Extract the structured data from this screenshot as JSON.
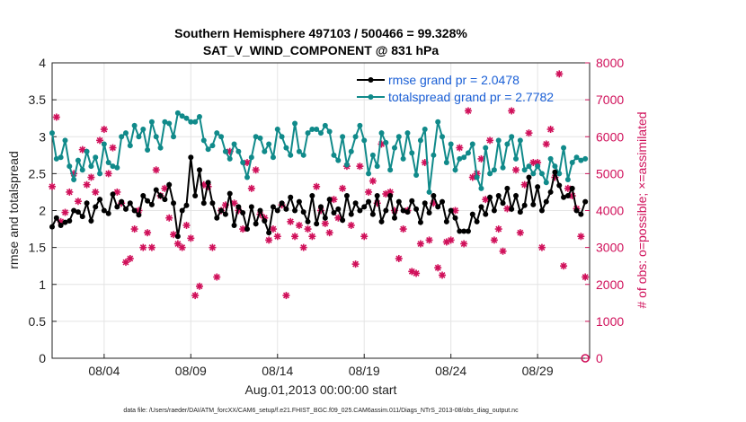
{
  "chart_data": {
    "type": "line",
    "title": "Southern Hemisphere 497103 / 500466 = 99.328%",
    "subtitle": "SAT_V_WIND_COMPONENT @ 831 hPa",
    "xlabel": "Aug.01,2013 00:00:00 start",
    "ylabel_left": "rmse and totalspread",
    "ylabel_right": "# of obs: o=possible; ×=assimilated",
    "xlim": [
      1.0,
      32.0
    ],
    "ylim_left": [
      0,
      4
    ],
    "ylim_right": [
      0,
      8000
    ],
    "x_ticks": [
      {
        "value": 4,
        "label": "08/04"
      },
      {
        "value": 9,
        "label": "08/09"
      },
      {
        "value": 14,
        "label": "08/14"
      },
      {
        "value": 19,
        "label": "08/19"
      },
      {
        "value": 24,
        "label": "08/24"
      },
      {
        "value": 29,
        "label": "08/29"
      }
    ],
    "y_ticks_left": [
      "0",
      "0.5",
      "1",
      "1.5",
      "2",
      "2.5",
      "3",
      "3.5",
      "4"
    ],
    "y_ticks_right": [
      "0",
      "1000",
      "2000",
      "3000",
      "4000",
      "5000",
      "6000",
      "7000",
      "8000"
    ],
    "grid": true,
    "legend_position": "top-right",
    "colors": {
      "rmse": "#000000",
      "spread": "#108a8a",
      "obs": "#d0105a",
      "legend_text": "#1a5fd6"
    },
    "series": [
      {
        "name": "rmse grand pr = 2.0478",
        "x": [
          1.0,
          1.25,
          1.5,
          1.75,
          2.0,
          2.25,
          2.5,
          2.75,
          3.0,
          3.25,
          3.5,
          3.75,
          4.0,
          4.25,
          4.5,
          4.75,
          5.0,
          5.25,
          5.5,
          5.75,
          6.0,
          6.25,
          6.5,
          6.75,
          7.0,
          7.25,
          7.5,
          7.75,
          8.0,
          8.25,
          8.5,
          8.75,
          9.0,
          9.25,
          9.5,
          9.75,
          10.0,
          10.25,
          10.5,
          10.75,
          11.0,
          11.25,
          11.5,
          11.75,
          12.0,
          12.25,
          12.5,
          12.75,
          13.0,
          13.25,
          13.5,
          13.75,
          14.0,
          14.25,
          14.5,
          14.75,
          15.0,
          15.25,
          15.5,
          15.75,
          16.0,
          16.25,
          16.5,
          16.75,
          17.0,
          17.25,
          17.5,
          17.75,
          18.0,
          18.25,
          18.5,
          18.75,
          19.0,
          19.25,
          19.5,
          19.75,
          20.0,
          20.25,
          20.5,
          20.75,
          21.0,
          21.25,
          21.5,
          21.75,
          22.0,
          22.25,
          22.5,
          22.75,
          23.0,
          23.25,
          23.5,
          23.75,
          24.0,
          24.25,
          24.5,
          24.75,
          25.0,
          25.25,
          25.5,
          25.75,
          26.0,
          26.25,
          26.5,
          26.75,
          27.0,
          27.25,
          27.5,
          27.75,
          28.0,
          28.25,
          28.5,
          28.75,
          29.0,
          29.25,
          29.5,
          29.75,
          30.0,
          30.25,
          30.5,
          30.75,
          31.0,
          31.25,
          31.5,
          31.75
        ],
        "y": [
          1.78,
          1.9,
          1.8,
          1.84,
          1.86,
          2.0,
          1.98,
          1.92,
          2.1,
          1.86,
          2.05,
          2.15,
          2.0,
          1.96,
          2.22,
          2.05,
          2.12,
          2.02,
          2.1,
          2.0,
          1.94,
          2.2,
          2.13,
          2.08,
          2.28,
          2.2,
          2.15,
          2.35,
          2.1,
          1.65,
          2.0,
          2.07,
          2.72,
          2.2,
          2.55,
          2.1,
          2.38,
          2.1,
          1.9,
          2.0,
          1.95,
          2.23,
          1.8,
          2.05,
          1.97,
          1.75,
          2.05,
          1.82,
          2.0,
          1.86,
          1.7,
          2.05,
          2.0,
          2.1,
          2.02,
          2.18,
          2.0,
          2.12,
          1.98,
          1.85,
          2.2,
          1.82,
          2.05,
          1.9,
          2.15,
          1.97,
          2.02,
          1.87,
          2.2,
          1.95,
          2.1,
          2.0,
          2.05,
          2.12,
          1.95,
          2.2,
          1.85,
          2.0,
          2.2,
          1.9,
          2.12,
          2.0,
          1.98,
          2.13,
          2.02,
          1.84,
          2.1,
          1.97,
          2.2,
          2.05,
          2.12,
          1.85,
          2.0,
          1.9,
          1.72,
          1.72,
          1.72,
          1.95,
          1.85,
          2.05,
          1.95,
          2.18,
          2.0,
          2.2,
          2.1,
          2.3,
          2.02,
          2.2,
          1.98,
          2.07,
          2.45,
          2.08,
          2.32,
          2.0,
          2.12,
          2.25,
          2.52,
          2.34,
          2.18,
          2.2,
          2.3,
          2.0,
          1.95,
          2.12
        ]
      },
      {
        "name": "totalspread grand pr = 2.7782",
        "x": [
          1.0,
          1.25,
          1.5,
          1.75,
          2.0,
          2.25,
          2.5,
          2.75,
          3.0,
          3.25,
          3.5,
          3.75,
          4.0,
          4.25,
          4.5,
          4.75,
          5.0,
          5.25,
          5.5,
          5.75,
          6.0,
          6.25,
          6.5,
          6.75,
          7.0,
          7.25,
          7.5,
          7.75,
          8.0,
          8.25,
          8.5,
          8.75,
          9.0,
          9.25,
          9.5,
          9.75,
          10.0,
          10.25,
          10.5,
          10.75,
          11.0,
          11.25,
          11.5,
          11.75,
          12.0,
          12.25,
          12.5,
          12.75,
          13.0,
          13.25,
          13.5,
          13.75,
          14.0,
          14.25,
          14.5,
          14.75,
          15.0,
          15.25,
          15.5,
          15.75,
          16.0,
          16.25,
          16.5,
          16.75,
          17.0,
          17.25,
          17.5,
          17.75,
          18.0,
          18.25,
          18.5,
          18.75,
          19.0,
          19.25,
          19.5,
          19.75,
          20.0,
          20.25,
          20.5,
          20.75,
          21.0,
          21.25,
          21.5,
          21.75,
          22.0,
          22.25,
          22.5,
          22.75,
          23.0,
          23.25,
          23.5,
          23.75,
          24.0,
          24.25,
          24.5,
          24.75,
          25.0,
          25.25,
          25.5,
          25.75,
          26.0,
          26.25,
          26.5,
          26.75,
          27.0,
          27.25,
          27.5,
          27.75,
          28.0,
          28.25,
          28.5,
          28.75,
          29.0,
          29.25,
          29.5,
          29.75,
          30.0,
          30.25,
          30.5,
          30.75,
          31.0,
          31.25,
          31.5,
          31.75
        ],
        "y": [
          3.05,
          2.7,
          2.72,
          2.95,
          2.6,
          2.42,
          2.68,
          2.55,
          2.8,
          2.6,
          2.72,
          2.5,
          2.9,
          2.65,
          2.6,
          2.58,
          3.0,
          3.05,
          2.88,
          3.15,
          3.0,
          3.1,
          2.82,
          3.2,
          3.0,
          2.85,
          3.2,
          3.18,
          3.0,
          3.32,
          3.28,
          3.25,
          3.2,
          3.2,
          3.27,
          2.95,
          2.83,
          2.88,
          3.05,
          3.0,
          2.8,
          2.7,
          2.9,
          2.8,
          2.65,
          2.45,
          2.72,
          3.0,
          2.98,
          2.8,
          2.9,
          2.72,
          3.1,
          3.0,
          2.85,
          2.75,
          3.18,
          2.8,
          2.75,
          3.05,
          3.1,
          3.1,
          3.05,
          3.15,
          3.07,
          2.75,
          2.68,
          3.0,
          2.62,
          2.8,
          3.0,
          3.15,
          2.95,
          2.5,
          2.75,
          2.6,
          3.05,
          2.92,
          2.55,
          2.85,
          3.0,
          2.7,
          3.05,
          2.78,
          2.48,
          2.95,
          3.1,
          2.25,
          2.75,
          3.2,
          3.0,
          2.65,
          2.9,
          2.55,
          2.7,
          2.72,
          2.78,
          2.9,
          2.45,
          2.3,
          2.85,
          2.5,
          2.55,
          2.95,
          2.58,
          2.9,
          3.0,
          2.7,
          2.95,
          2.55,
          2.6,
          2.5,
          2.6,
          2.5,
          2.38,
          2.7,
          2.6,
          2.5,
          2.85,
          2.42,
          2.65,
          2.72,
          2.68,
          2.7
        ]
      },
      {
        "name": "assimilated obs",
        "x": [
          1.0,
          1.25,
          1.5,
          1.75,
          2.0,
          2.25,
          2.5,
          2.75,
          3.0,
          3.25,
          3.5,
          3.75,
          4.0,
          4.25,
          4.5,
          4.75,
          5.0,
          5.25,
          5.5,
          5.75,
          6.0,
          6.25,
          6.5,
          6.75,
          7.0,
          7.25,
          7.5,
          7.75,
          8.0,
          8.25,
          8.5,
          8.75,
          9.0,
          9.25,
          9.5,
          9.75,
          10.0,
          10.25,
          10.5,
          10.75,
          11.0,
          11.25,
          11.5,
          11.75,
          12.0,
          12.25,
          12.5,
          12.75,
          13.0,
          13.25,
          13.5,
          13.75,
          14.0,
          14.25,
          14.5,
          14.75,
          15.0,
          15.25,
          15.5,
          15.75,
          16.0,
          16.25,
          16.5,
          16.75,
          17.0,
          17.25,
          17.5,
          17.75,
          18.0,
          18.25,
          18.5,
          18.75,
          19.0,
          19.25,
          19.5,
          19.75,
          20.0,
          20.25,
          20.5,
          20.75,
          21.0,
          21.25,
          21.5,
          21.75,
          22.0,
          22.25,
          22.5,
          22.75,
          23.0,
          23.25,
          23.5,
          23.75,
          24.0,
          24.25,
          24.5,
          24.75,
          25.0,
          25.25,
          25.5,
          25.75,
          26.0,
          26.25,
          26.5,
          26.75,
          27.0,
          27.25,
          27.5,
          27.75,
          28.0,
          28.25,
          28.5,
          28.75,
          29.0,
          29.25,
          29.5,
          29.75,
          30.0,
          30.25,
          30.5,
          30.75,
          31.0,
          31.25,
          31.5,
          31.75
        ],
        "y": [
          4650,
          6530,
          3700,
          3950,
          4500,
          5000,
          4250,
          5650,
          4700,
          4900,
          4500,
          5900,
          6200,
          5000,
          5700,
          4500,
          4200,
          2600,
          2700,
          3500,
          4000,
          3000,
          3400,
          3000,
          5100,
          4400,
          4600,
          3800,
          3350,
          3100,
          3000,
          3600,
          3250,
          1700,
          1950,
          4700,
          4650,
          3000,
          2200,
          4000,
          4150,
          5600,
          4200,
          4000,
          3500,
          5300,
          4600,
          5100,
          3900,
          3800,
          3200,
          3500,
          3300,
          4150,
          1700,
          3700,
          3300,
          3600,
          3000,
          3500,
          3300,
          4650,
          4000,
          3650,
          3400,
          4300,
          3800,
          4600,
          5200,
          3600,
          2550,
          5200,
          3300,
          4500,
          4800,
          4200,
          5800,
          4450,
          4500,
          4000,
          2700,
          3500,
          4000,
          2350,
          2300,
          3100,
          5300,
          3200,
          4200,
          2450,
          2250,
          3150,
          3200,
          4000,
          5700,
          3100,
          6700,
          4900,
          5000,
          5400,
          4300,
          5900,
          3200,
          3500,
          2900,
          4050,
          6700,
          5100,
          3400,
          4700,
          6100,
          5300,
          5300,
          3000,
          5800,
          6200,
          4900,
          7700,
          2500,
          4600,
          4400,
          4050,
          3300,
          2200
        ]
      },
      {
        "name": "possible obs",
        "x": [
          31.75
        ],
        "y": [
          0
        ]
      }
    ],
    "legend": [
      "rmse grand pr = 2.0478",
      "totalspread grand pr = 2.7782"
    ]
  },
  "footer": "data file: /Users/raeder/DAI/ATM_forcXX/CAM6_setup/f.e21.FHIST_BGC.f09_025.CAM6assim.011/Diags_NTrS_2013-08/obs_diag_output.nc"
}
